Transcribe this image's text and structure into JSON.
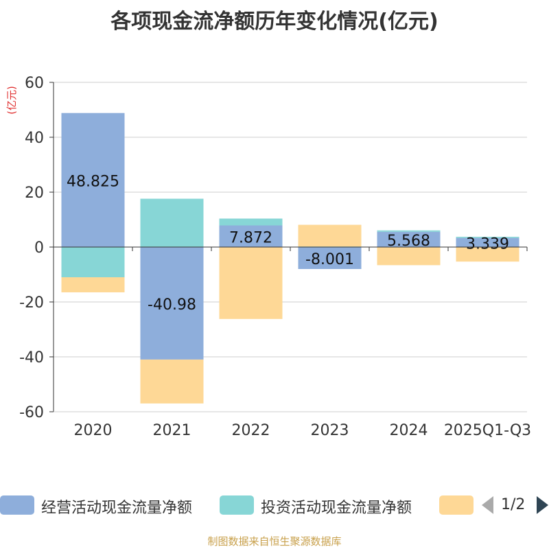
{
  "title": "各项现金流净额历年变化情况(亿元)",
  "chart_data": {
    "type": "bar",
    "stacked": true,
    "title": "各项现金流净额历年变化情况(亿元)",
    "ylabel": "(亿元)",
    "ylim": [
      -60,
      60
    ],
    "yticks": [
      60,
      40,
      20,
      0,
      -20,
      -40,
      -60
    ],
    "categories": [
      "2020",
      "2021",
      "2022",
      "2023",
      "2024",
      "2025Q1-Q3"
    ],
    "series": [
      {
        "name": "经营活动现金流量净额",
        "color": "#8eaedb",
        "values": [
          48.825,
          -40.98,
          7.872,
          -8.001,
          5.568,
          3.339
        ],
        "labels": [
          "48.825",
          "-40.98",
          "7.872",
          "-8.001",
          "5.568",
          "3.339"
        ]
      },
      {
        "name": "投资活动现金流量净额",
        "color": "#87d6d6",
        "values": [
          -11.0,
          17.6,
          2.5,
          0.2,
          0.5,
          0.4
        ]
      },
      {
        "name": "",
        "color": "#fed896",
        "values": [
          -5.5,
          -16.0,
          -26.2,
          7.9,
          -6.6,
          -5.3
        ]
      }
    ],
    "legend_position": "bottom"
  },
  "legend": {
    "items": [
      {
        "label": "经营活动现金流量净额",
        "color": "#8eaedb"
      },
      {
        "label": "投资活动现金流量净额",
        "color": "#87d6d6"
      },
      {
        "label": "",
        "color": "#fed896"
      }
    ],
    "page": "1/2"
  },
  "source": "制图数据来自恒生聚源数据库"
}
